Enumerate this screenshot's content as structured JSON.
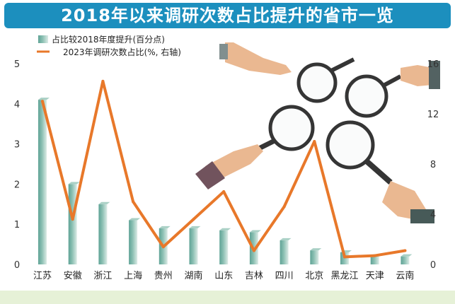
{
  "title": "2018年以来调研次数占比提升的省市一览",
  "chart_data": {
    "type": "bar",
    "categories": [
      "江苏",
      "安徽",
      "浙江",
      "上海",
      "贵州",
      "湖南",
      "山东",
      "吉林",
      "四川",
      "北京",
      "黑龙江",
      "天津",
      "云南"
    ],
    "series": [
      {
        "name": "占比较2018年度提升(百分点)",
        "type": "bar",
        "axis": "left",
        "values": [
          4.1,
          2.0,
          1.5,
          1.1,
          0.9,
          0.9,
          0.85,
          0.8,
          0.6,
          0.35,
          0.3,
          0.2,
          0.2
        ]
      },
      {
        "name": "2023年调研次数占比(%, 右轴)",
        "type": "line",
        "axis": "right",
        "values": [
          13.0,
          3.6,
          14.6,
          5.0,
          1.4,
          3.6,
          5.8,
          1.1,
          4.6,
          9.8,
          0.6,
          0.7,
          1.1
        ]
      }
    ],
    "y_left": {
      "min": 0,
      "max": 5,
      "ticks": [
        0,
        1,
        2,
        3,
        4,
        5
      ]
    },
    "y_right": {
      "min": 0,
      "max": 16,
      "ticks": [
        0,
        4,
        8,
        12,
        16
      ]
    },
    "legend_position": "top-left",
    "grid": false
  },
  "colors": {
    "title_bg": "#1c8fbe",
    "bar_light": "#cfe3dc",
    "bar_dark": "#5fa396",
    "line": "#e8782a",
    "axis_text": "#333333"
  }
}
